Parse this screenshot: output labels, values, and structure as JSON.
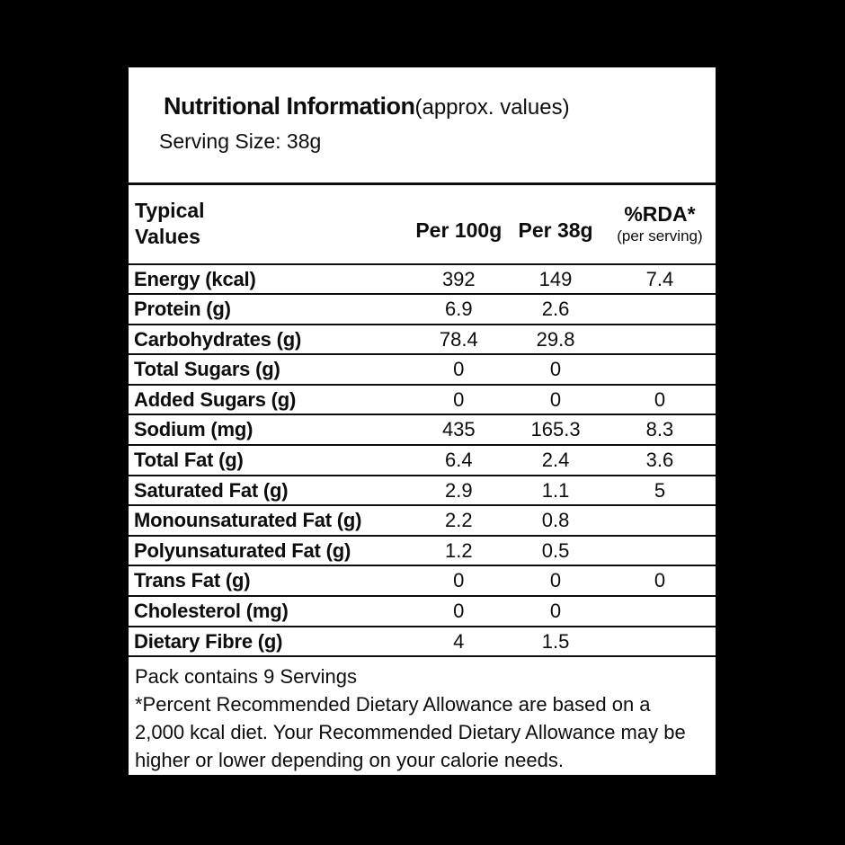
{
  "colors": {
    "background": "#000000",
    "panel": "#ffffff",
    "text": "#0d0d0d"
  },
  "header": {
    "title": "Nutritional Information",
    "title_suffix": "(approx. values)",
    "serving_size": "Serving Size: 38g"
  },
  "table": {
    "col1_header_line1": "Typical",
    "col1_header_line2": "Values",
    "col2_header": "Per 100g",
    "col3_header": "Per 38g",
    "col4_header": "%RDA*",
    "col4_subheader": "(per serving)",
    "rows": [
      {
        "label": "Energy (kcal)",
        "per100": "392",
        "per38": "149",
        "rda": "7.4"
      },
      {
        "label": "Protein (g)",
        "per100": "6.9",
        "per38": "2.6",
        "rda": ""
      },
      {
        "label": "Carbohydrates (g)",
        "per100": "78.4",
        "per38": "29.8",
        "rda": ""
      },
      {
        "label": "Total Sugars (g)",
        "per100": "0",
        "per38": "0",
        "rda": ""
      },
      {
        "label": "Added Sugars (g)",
        "per100": "0",
        "per38": "0",
        "rda": "0"
      },
      {
        "label": "Sodium (mg)",
        "per100": "435",
        "per38": "165.3",
        "rda": "8.3"
      },
      {
        "label": "Total Fat (g)",
        "per100": "6.4",
        "per38": "2.4",
        "rda": "3.6"
      },
      {
        "label": "Saturated Fat (g)",
        "per100": "2.9",
        "per38": "1.1",
        "rda": "5"
      },
      {
        "label": "Monounsaturated Fat (g)",
        "per100": "2.2",
        "per38": "0.8",
        "rda": ""
      },
      {
        "label": "Polyunsaturated Fat (g)",
        "per100": "1.2",
        "per38": "0.5",
        "rda": ""
      },
      {
        "label": "Trans Fat (g)",
        "per100": "0",
        "per38": "0",
        "rda": "0"
      },
      {
        "label": "Cholesterol (mg)",
        "per100": "0",
        "per38": "0",
        "rda": ""
      },
      {
        "label": "Dietary Fibre (g)",
        "per100": "4",
        "per38": "1.5",
        "rda": ""
      }
    ]
  },
  "footer": {
    "servings_note": "Pack contains 9 Servings",
    "rda_note": "*Percent Recommended Dietary Allowance are based on a 2,000 kcal diet. Your Recommended Dietary Allowance may be higher or lower depending on your calorie needs."
  }
}
